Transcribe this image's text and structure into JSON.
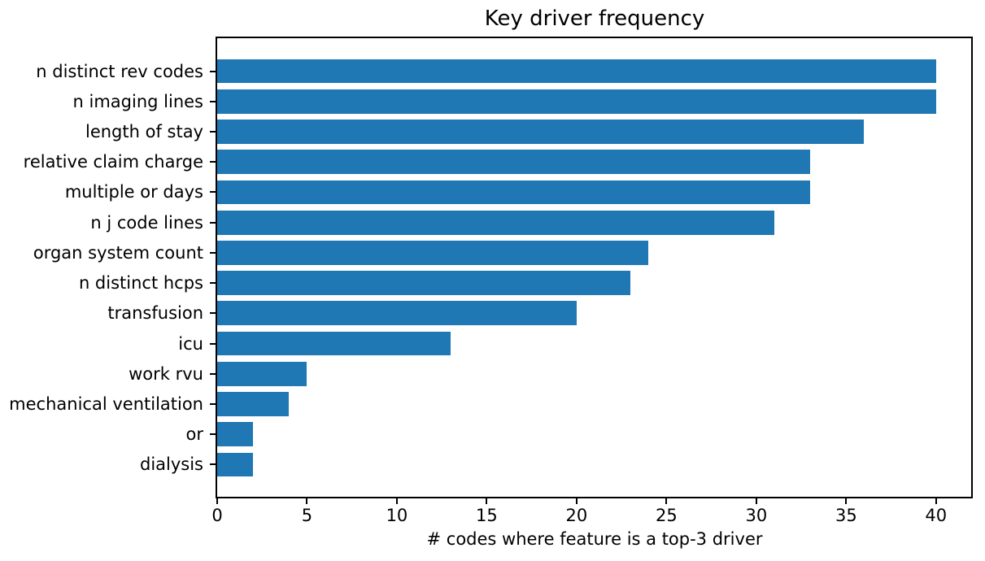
{
  "chart_data": {
    "type": "bar",
    "orientation": "horizontal",
    "title": "Key driver frequency",
    "xlabel": "# codes where feature is a top-3 driver",
    "ylabel": "",
    "categories": [
      "n distinct rev codes",
      "n imaging lines",
      "length of stay",
      "relative claim charge",
      "multiple or days",
      "n j code lines",
      "organ system count",
      "n distinct hcps",
      "transfusion",
      "icu",
      "work rvu",
      "mechanical ventilation",
      "or",
      "dialysis"
    ],
    "values": [
      40,
      40,
      36,
      33,
      33,
      31,
      24,
      23,
      20,
      13,
      5,
      4,
      2,
      2
    ],
    "xlim": [
      0,
      42
    ],
    "xticks": [
      0,
      5,
      10,
      15,
      20,
      25,
      30,
      35,
      40
    ],
    "grid": false,
    "legend": null,
    "colors": {
      "bar": "#1f77b4",
      "text": "#000000",
      "spine": "#000000",
      "background": "#ffffff"
    }
  }
}
